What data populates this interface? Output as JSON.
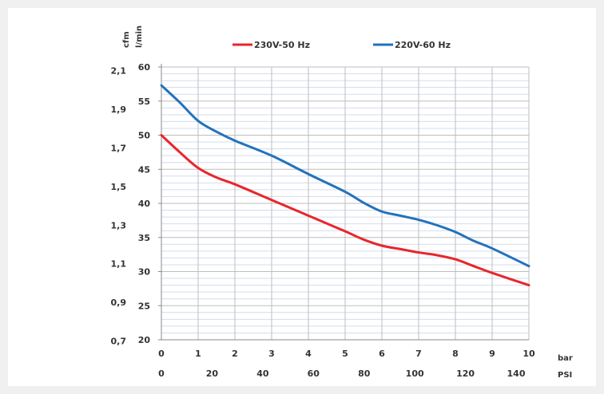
{
  "chart_data": {
    "type": "line",
    "title": "",
    "x_bar": {
      "label": "bar",
      "ticks": [
        "0",
        "1",
        "2",
        "3",
        "4",
        "5",
        "6",
        "7",
        "8",
        "9",
        "10"
      ],
      "range": [
        0,
        10
      ]
    },
    "x_psi": {
      "label": "PSI",
      "ticks": [
        "0",
        "20",
        "40",
        "60",
        "80",
        "100",
        "120",
        "140"
      ],
      "values": [
        0,
        20,
        40,
        60,
        80,
        100,
        120,
        140
      ]
    },
    "y_lmin": {
      "label": "l/min",
      "ticks": [
        "20",
        "25",
        "30",
        "35",
        "40",
        "45",
        "50",
        "55",
        "60"
      ],
      "range": [
        20,
        60
      ]
    },
    "y_cfm": {
      "label": "cfm",
      "ticks": [
        "0,7",
        "0,9",
        "1,1",
        "1,3",
        "1,5",
        "1,7",
        "1,9",
        "2,1"
      ],
      "values": [
        0.7,
        0.9,
        1.1,
        1.3,
        1.5,
        1.7,
        1.9,
        2.1
      ]
    },
    "legend_position": "top",
    "grid": true,
    "series": [
      {
        "name": "230V-50 Hz",
        "color": "#e8262b",
        "x": [
          0,
          0.5,
          1,
          1.5,
          2,
          3,
          4,
          5,
          5.5,
          6,
          6.5,
          7,
          7.5,
          8,
          8.5,
          9,
          10
        ],
        "y": [
          50,
          47.5,
          45.2,
          43.8,
          42.8,
          40.5,
          38.2,
          35.9,
          34.7,
          33.8,
          33.3,
          32.8,
          32.4,
          31.8,
          30.8,
          29.8,
          28
        ]
      },
      {
        "name": "220V-60 Hz",
        "color": "#2272bb",
        "x": [
          0,
          0.5,
          1,
          1.5,
          2,
          3,
          4,
          5,
          5.5,
          6,
          6.5,
          7,
          7.5,
          8,
          8.5,
          9,
          10
        ],
        "y": [
          57.3,
          54.8,
          52.1,
          50.5,
          49.2,
          47.0,
          44.3,
          41.7,
          40.1,
          38.8,
          38.2,
          37.6,
          36.8,
          35.8,
          34.5,
          33.4,
          30.8
        ]
      }
    ]
  }
}
